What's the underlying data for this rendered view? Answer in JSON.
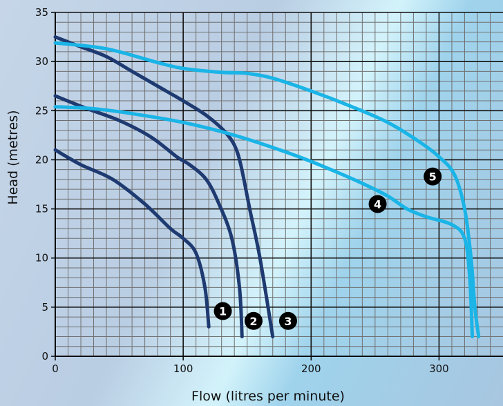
{
  "chart_data": {
    "type": "line",
    "xlabel": "Flow (litres per minute)",
    "ylabel": "Head (metres)",
    "xlim": [
      0,
      350
    ],
    "ylim": [
      0,
      35
    ],
    "x_ticks": [
      0,
      100,
      200,
      300
    ],
    "y_ticks": [
      0,
      5,
      10,
      15,
      20,
      25,
      30,
      35
    ],
    "grid": true,
    "series": [
      {
        "name": "1",
        "color": "#1e3a70",
        "x": [
          0,
          20,
          45,
          70,
          90,
          100,
          110,
          117,
          120
        ],
        "y": [
          21,
          19.5,
          18,
          15.5,
          13,
          12,
          10.5,
          7,
          3
        ]
      },
      {
        "name": "2",
        "color": "#1e3a70",
        "x": [
          0,
          25,
          50,
          75,
          95,
          105,
          118,
          128,
          138,
          144,
          146
        ],
        "y": [
          26.5,
          25.2,
          24,
          22.3,
          20.3,
          19.5,
          18,
          15.5,
          12,
          7,
          2
        ]
      },
      {
        "name": "3",
        "color": "#1e3a70",
        "x": [
          0,
          20,
          40,
          60,
          80,
          100,
          115,
          125,
          133,
          140,
          145,
          152,
          160,
          170
        ],
        "y": [
          32.5,
          31.5,
          30.5,
          29,
          27.5,
          26,
          24.8,
          23.8,
          22.8,
          21.5,
          19.5,
          15,
          10,
          2
        ]
      },
      {
        "name": "4",
        "color": "#1ab4e6",
        "x": [
          0,
          30,
          60,
          100,
          140,
          180,
          210,
          240,
          260,
          275,
          290,
          310,
          320,
          324,
          326
        ],
        "y": [
          25.4,
          25.2,
          24.7,
          23.8,
          22.5,
          20.8,
          19.3,
          17.6,
          16.3,
          15,
          14.2,
          13.4,
          12,
          8,
          2
        ]
      },
      {
        "name": "5",
        "color": "#1ab4e6",
        "x": [
          0,
          40,
          80,
          100,
          130,
          150,
          170,
          200,
          230,
          260,
          285,
          300,
          312,
          320,
          325,
          328,
          331
        ],
        "y": [
          31.9,
          31.3,
          29.9,
          29.3,
          28.9,
          28.8,
          28.3,
          27,
          25.5,
          23.8,
          21.8,
          20.3,
          18.5,
          15,
          10,
          5,
          2
        ]
      }
    ],
    "markers": [
      {
        "label": "1",
        "x": 131,
        "y": 4.6
      },
      {
        "label": "2",
        "x": 155,
        "y": 3.6
      },
      {
        "label": "3",
        "x": 182,
        "y": 3.6
      },
      {
        "label": "4",
        "x": 252,
        "y": 15.5
      },
      {
        "label": "5",
        "x": 295,
        "y": 18.3
      }
    ]
  }
}
